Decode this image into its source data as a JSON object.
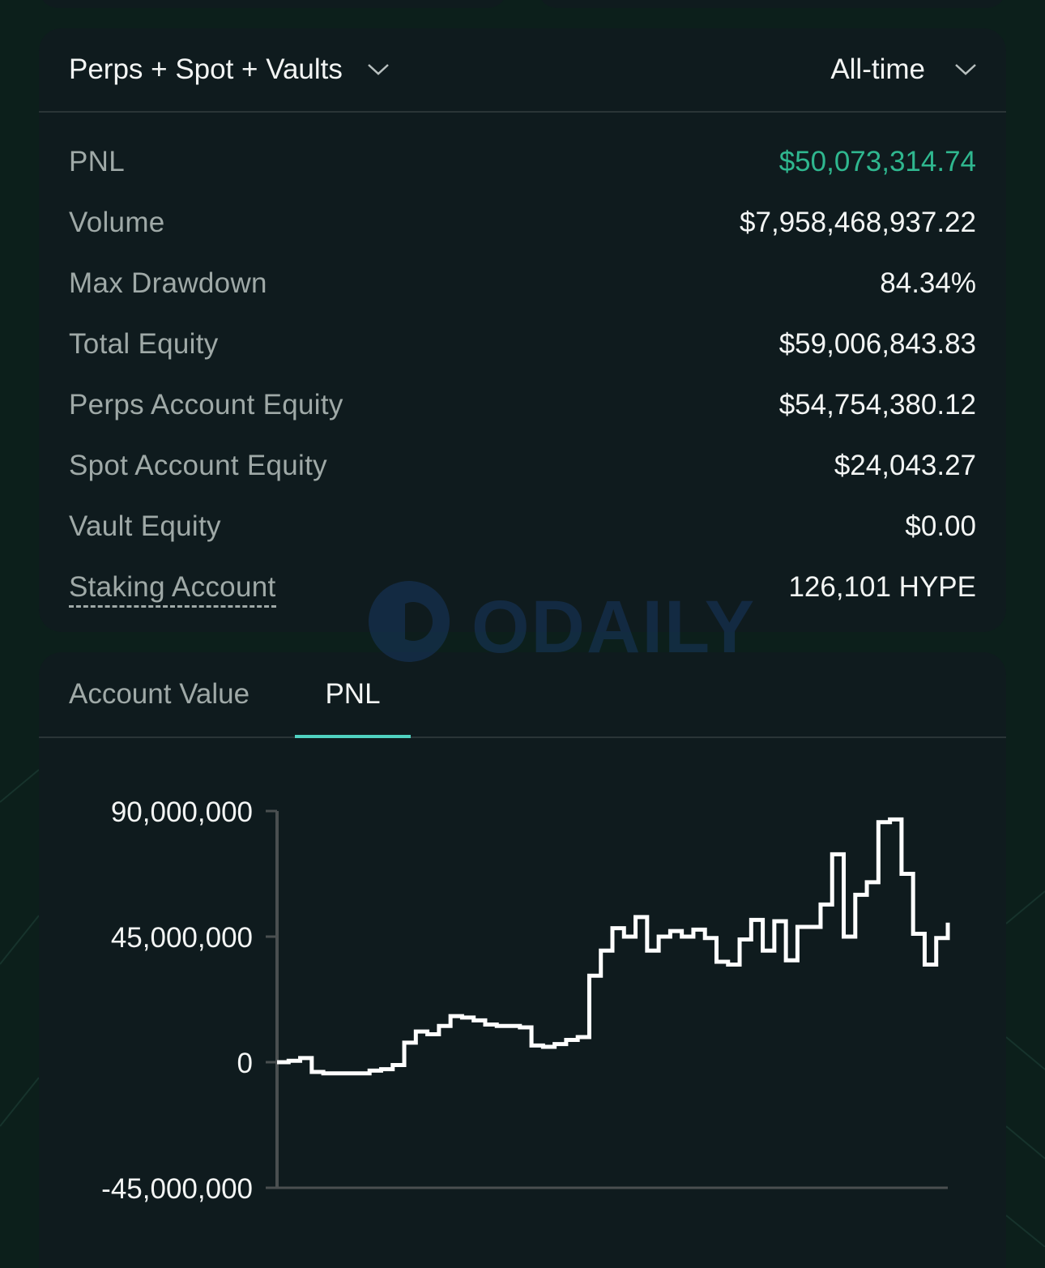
{
  "filters": {
    "market_label": "Perps + Spot + Vaults",
    "range_label": "All-time"
  },
  "stats": [
    {
      "label": "PNL",
      "value": "$50,073,314.74",
      "tone": "positive"
    },
    {
      "label": "Volume",
      "value": "$7,958,468,937.22",
      "tone": "neutral"
    },
    {
      "label": "Max Drawdown",
      "value": "84.34%",
      "tone": "neutral"
    },
    {
      "label": "Total Equity",
      "value": "$59,006,843.83",
      "tone": "neutral"
    },
    {
      "label": "Perps Account Equity",
      "value": "$54,754,380.12",
      "tone": "neutral"
    },
    {
      "label": "Spot Account Equity",
      "value": "$24,043.27",
      "tone": "neutral"
    },
    {
      "label": "Vault Equity",
      "value": "$0.00",
      "tone": "neutral"
    },
    {
      "label": "Staking Account",
      "value": "126,101 HYPE",
      "tone": "neutral"
    }
  ],
  "tabs": {
    "account_value": "Account Value",
    "pnl": "PNL",
    "active": "pnl"
  },
  "watermark": "ODAILY",
  "colors": {
    "accent": "#50d2c1",
    "positive": "#2fb78f",
    "line": "#ffffff",
    "card": "#0f1b1e",
    "background": "#0c1f1b"
  },
  "chart_data": {
    "type": "line",
    "step": true,
    "ylim": [
      -45000000,
      90000000
    ],
    "yticks": [
      {
        "value": 90000000,
        "label": "90,000,000"
      },
      {
        "value": 45000000,
        "label": "45,000,000"
      },
      {
        "value": 0,
        "label": "0"
      },
      {
        "value": -45000000,
        "label": "-45,000,000"
      }
    ],
    "x": [
      0,
      1,
      2,
      3,
      4,
      5,
      6,
      7,
      8,
      9,
      10,
      11,
      12,
      13,
      14,
      15,
      16,
      17,
      18,
      19,
      20,
      21,
      22,
      23,
      24,
      25,
      26,
      27,
      28,
      29,
      30,
      31,
      32,
      33,
      34,
      35,
      36,
      37,
      38,
      39,
      40,
      41,
      42,
      43,
      44,
      45,
      46,
      47,
      48,
      49,
      50,
      51,
      52,
      53,
      54,
      55,
      56,
      57,
      58
    ],
    "series": [
      {
        "values": [
          0,
          500000,
          1500000,
          -3500000,
          -4000000,
          -4000000,
          -4000000,
          -4000000,
          -3000000,
          -2500000,
          -1000000,
          7000000,
          11000000,
          10000000,
          13000000,
          16500000,
          16000000,
          15000000,
          13500000,
          13000000,
          13000000,
          12500000,
          6000000,
          5500000,
          6500000,
          8000000,
          9000000,
          31000000,
          40000000,
          48000000,
          45000000,
          52000000,
          40000000,
          45000000,
          47000000,
          45000000,
          47500000,
          44500000,
          36000000,
          35000000,
          44000000,
          51000000,
          40000000,
          50500000,
          36500000,
          48500000,
          48500000,
          56500000,
          74500000,
          45000000,
          60000000,
          64500000,
          86000000,
          87000000,
          67500000,
          46000000,
          35000000,
          44500000,
          50000000
        ]
      }
    ]
  }
}
